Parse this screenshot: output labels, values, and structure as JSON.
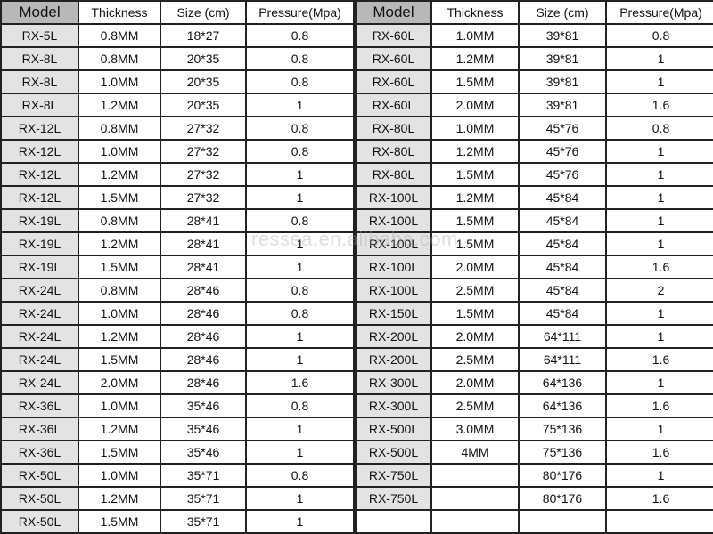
{
  "headers": [
    "Model",
    "Thickness",
    "Size (cm)",
    "Pressure(Mpa)"
  ],
  "left_rows": [
    [
      "RX-5L",
      "0.8MM",
      "18*27",
      "0.8"
    ],
    [
      "RX-8L",
      "0.8MM",
      "20*35",
      "0.8"
    ],
    [
      "RX-8L",
      "1.0MM",
      "20*35",
      "0.8"
    ],
    [
      "RX-8L",
      "1.2MM",
      "20*35",
      "1"
    ],
    [
      "RX-12L",
      "0.8MM",
      "27*32",
      "0.8"
    ],
    [
      "RX-12L",
      "1.0MM",
      "27*32",
      "0.8"
    ],
    [
      "RX-12L",
      "1.2MM",
      "27*32",
      "1"
    ],
    [
      "RX-12L",
      "1.5MM",
      "27*32",
      "1"
    ],
    [
      "RX-19L",
      "0.8MM",
      "28*41",
      "0.8"
    ],
    [
      "RX-19L",
      "1.2MM",
      "28*41",
      "1"
    ],
    [
      "RX-19L",
      "1.5MM",
      "28*41",
      "1"
    ],
    [
      "RX-24L",
      "0.8MM",
      "28*46",
      "0.8"
    ],
    [
      "RX-24L",
      "1.0MM",
      "28*46",
      "0.8"
    ],
    [
      "RX-24L",
      "1.2MM",
      "28*46",
      "1"
    ],
    [
      "RX-24L",
      "1.5MM",
      "28*46",
      "1"
    ],
    [
      "RX-24L",
      "2.0MM",
      "28*46",
      "1.6"
    ],
    [
      "RX-36L",
      "1.0MM",
      "35*46",
      "0.8"
    ],
    [
      "RX-36L",
      "1.2MM",
      "35*46",
      "1"
    ],
    [
      "RX-36L",
      "1.5MM",
      "35*46",
      "1"
    ],
    [
      "RX-50L",
      "1.0MM",
      "35*71",
      "0.8"
    ],
    [
      "RX-50L",
      "1.2MM",
      "35*71",
      "1"
    ],
    [
      "RX-50L",
      "1.5MM",
      "35*71",
      "1"
    ]
  ],
  "right_rows": [
    [
      "RX-60L",
      "1.0MM",
      "39*81",
      "0.8"
    ],
    [
      "RX-60L",
      "1.2MM",
      "39*81",
      "1"
    ],
    [
      "RX-60L",
      "1.5MM",
      "39*81",
      "1"
    ],
    [
      "RX-60L",
      "2.0MM",
      "39*81",
      "1.6"
    ],
    [
      "RX-80L",
      "1.0MM",
      "45*76",
      "0.8"
    ],
    [
      "RX-80L",
      "1.2MM",
      "45*76",
      "1"
    ],
    [
      "RX-80L",
      "1.5MM",
      "45*76",
      "1"
    ],
    [
      "RX-100L",
      "1.2MM",
      "45*84",
      "1"
    ],
    [
      "RX-100L",
      "1.5MM",
      "45*84",
      "1"
    ],
    [
      "RX-100L",
      "1.5MM",
      "45*84",
      "1"
    ],
    [
      "RX-100L",
      "2.0MM",
      "45*84",
      "1.6"
    ],
    [
      "RX-100L",
      "2.5MM",
      "45*84",
      "2"
    ],
    [
      "RX-150L",
      "1.5MM",
      "45*84",
      "1"
    ],
    [
      "RX-200L",
      "2.0MM",
      "64*111",
      "1"
    ],
    [
      "RX-200L",
      "2.5MM",
      "64*111",
      "1.6"
    ],
    [
      "RX-300L",
      "2.0MM",
      "64*136",
      "1"
    ],
    [
      "RX-300L",
      "2.5MM",
      "64*136",
      "1.6"
    ],
    [
      "RX-500L",
      "3.0MM",
      "75*136",
      "1"
    ],
    [
      "RX-500L",
      "4MM",
      "75*136",
      "1.6"
    ],
    [
      "RX-750L",
      "",
      "80*176",
      "1"
    ],
    [
      "RX-750L",
      "",
      "80*176",
      "1.6"
    ],
    [
      "",
      "",
      "",
      ""
    ]
  ],
  "watermark": "ressea.en.alibaba.com"
}
